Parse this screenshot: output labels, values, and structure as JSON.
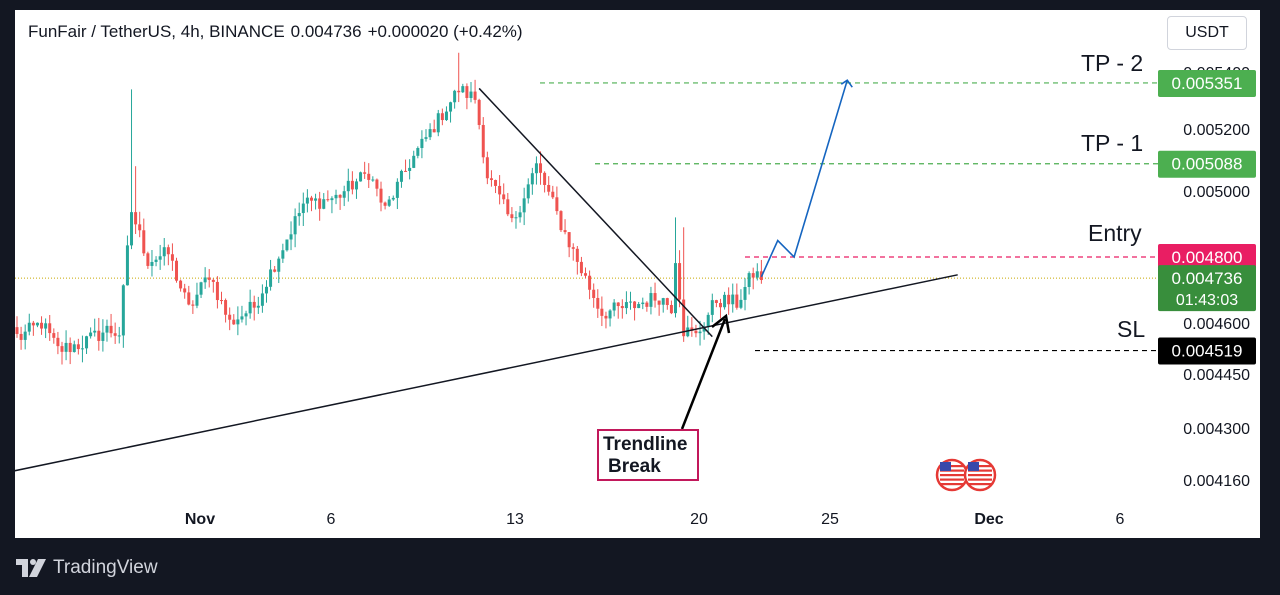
{
  "header": {
    "symbol": "FunFair / TetherUS, 4h, BINANCE",
    "price": "0.004736",
    "change": "+0.000020 (+0.42%)"
  },
  "currency_button": "USDT",
  "annotations": {
    "tp2": "TP - 2",
    "tp1": "TP - 1",
    "entry": "Entry",
    "sl": "SL",
    "trendline_break_1": "Trendline",
    "trendline_break_2": "Break"
  },
  "footer": {
    "brand": "TradingView"
  },
  "colors": {
    "up": "#26a69a",
    "down": "#ef5350",
    "tp": "#4caf50",
    "entry": "#e91e63",
    "current": "#388e3c",
    "sl": "#000000",
    "arrow": "#1565c0"
  },
  "icons": [
    "us-flag-icon",
    "tradingview-logo-icon"
  ],
  "chart_data": {
    "type": "candlestick",
    "title": "FunFair / TetherUS, 4h, BINANCE",
    "x_tick_labels": [
      "Nov",
      "6",
      "13",
      "20",
      "25",
      "Dec",
      "6"
    ],
    "y_tick_labels": [
      "0.005400",
      "0.005200",
      "0.005000",
      "0.004600",
      "0.004450",
      "0.004300",
      "0.004160"
    ],
    "price_levels": [
      {
        "name": "TP - 2",
        "value": "0.005351"
      },
      {
        "name": "TP - 1",
        "value": "0.005088"
      },
      {
        "name": "Entry",
        "value": "0.004800"
      },
      {
        "name": "SL",
        "value": "0.004519"
      }
    ],
    "current_price": "0.004736",
    "countdown": "01:43:03",
    "grid": false,
    "waypoints": [
      {
        "x": 1,
        "y": 0.00456
      },
      {
        "x": 6,
        "y": 0.0046
      },
      {
        "x": 10,
        "y": 0.00452
      },
      {
        "x": 16,
        "y": 0.00454
      },
      {
        "x": 22,
        "y": 0.00458
      },
      {
        "x": 25,
        "y": 0.00457
      },
      {
        "x": 28,
        "y": 0.00494
      },
      {
        "x": 32,
        "y": 0.00479
      },
      {
        "x": 37,
        "y": 0.00481
      },
      {
        "x": 42,
        "y": 0.00464
      },
      {
        "x": 47,
        "y": 0.00475
      },
      {
        "x": 52,
        "y": 0.0046
      },
      {
        "x": 58,
        "y": 0.00465
      },
      {
        "x": 63,
        "y": 0.00478
      },
      {
        "x": 70,
        "y": 0.00496
      },
      {
        "x": 78,
        "y": 0.00498
      },
      {
        "x": 86,
        "y": 0.00506
      },
      {
        "x": 90,
        "y": 0.00494
      },
      {
        "x": 96,
        "y": 0.00509
      },
      {
        "x": 104,
        "y": 0.00525
      },
      {
        "x": 108,
        "y": 0.00533
      },
      {
        "x": 112,
        "y": 0.0053
      },
      {
        "x": 115,
        "y": 0.00505
      },
      {
        "x": 121,
        "y": 0.0049
      },
      {
        "x": 127,
        "y": 0.00508
      },
      {
        "x": 133,
        "y": 0.0049
      },
      {
        "x": 138,
        "y": 0.00476
      },
      {
        "x": 143,
        "y": 0.00463
      },
      {
        "x": 150,
        "y": 0.00465
      },
      {
        "x": 157,
        "y": 0.00468
      },
      {
        "x": 160,
        "y": 0.00465
      },
      {
        "x": 161,
        "y": 0.0048
      },
      {
        "x": 163,
        "y": 0.00458
      },
      {
        "x": 166,
        "y": 0.00456
      },
      {
        "x": 171,
        "y": 0.00467
      },
      {
        "x": 176,
        "y": 0.00466
      },
      {
        "x": 180,
        "y": 0.00475
      },
      {
        "x": 182,
        "y": 0.00474
      }
    ],
    "trendlines": [
      {
        "x1": -4,
        "y1": 0.004177,
        "x2": 230,
        "y2": 0.004746
      },
      {
        "x1": 113,
        "y1": 0.005333,
        "x2": 170,
        "y2": 0.00456
      }
    ],
    "projection": [
      {
        "x": 182,
        "y": 0.00474
      },
      {
        "x": 186,
        "y": 0.00485
      },
      {
        "x": 190,
        "y": 0.0048
      },
      {
        "x": 203,
        "y": 0.00536
      }
    ]
  }
}
